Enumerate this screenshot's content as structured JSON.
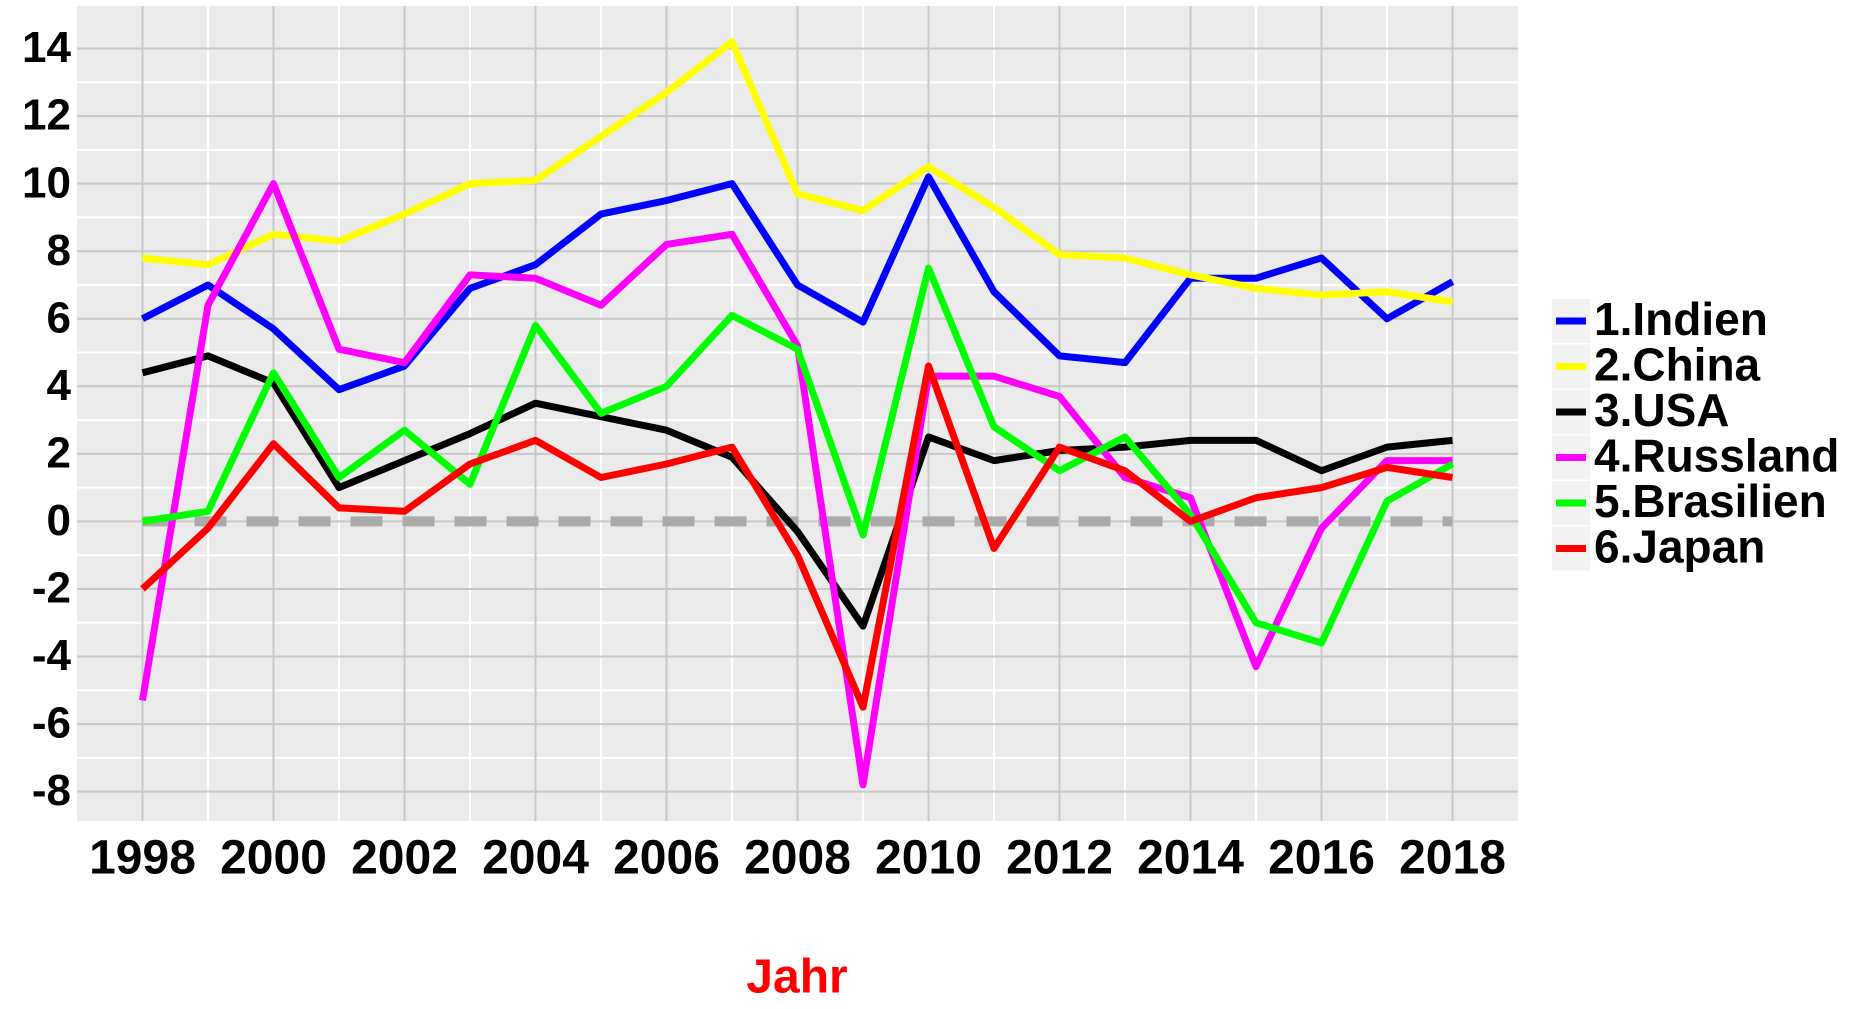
{
  "chart_data": {
    "type": "line",
    "x_label": "Jahr",
    "x": [
      1998,
      1999,
      2000,
      2001,
      2002,
      2003,
      2004,
      2005,
      2006,
      2007,
      2008,
      2009,
      2010,
      2011,
      2012,
      2013,
      2014,
      2015,
      2016,
      2017,
      2018
    ],
    "series": [
      {
        "name": "1.Indien",
        "color": "#0000ff",
        "values": [
          6.0,
          7.0,
          5.7,
          3.9,
          4.6,
          6.9,
          7.6,
          9.1,
          9.5,
          10.0,
          7.0,
          5.9,
          10.2,
          6.8,
          4.9,
          4.7,
          7.2,
          7.2,
          7.8,
          6.0,
          7.1
        ]
      },
      {
        "name": "2.China",
        "color": "#ffff00",
        "values": [
          7.8,
          7.6,
          8.5,
          8.3,
          9.1,
          10.0,
          10.1,
          11.4,
          12.7,
          14.2,
          9.7,
          9.2,
          10.5,
          9.3,
          7.9,
          7.8,
          7.3,
          6.9,
          6.7,
          6.8,
          6.5
        ]
      },
      {
        "name": "3.USA",
        "color": "#000000",
        "values": [
          4.4,
          4.9,
          4.1,
          1.0,
          1.8,
          2.6,
          3.5,
          3.1,
          2.7,
          1.9,
          -0.3,
          -3.1,
          2.5,
          1.8,
          2.1,
          2.2,
          2.4,
          2.4,
          1.5,
          2.2,
          2.4
        ]
      },
      {
        "name": "4.Russland",
        "color": "#ff00ff",
        "values": [
          -5.3,
          6.4,
          10.0,
          5.1,
          4.7,
          7.3,
          7.2,
          6.4,
          8.2,
          8.5,
          5.2,
          -7.8,
          4.3,
          4.3,
          3.7,
          1.3,
          0.7,
          -4.3,
          -0.2,
          1.8,
          1.8
        ]
      },
      {
        "name": "5.Brasilien",
        "color": "#00ff00",
        "values": [
          0.0,
          0.3,
          4.4,
          1.3,
          2.7,
          1.1,
          5.8,
          3.2,
          4.0,
          6.1,
          5.1,
          -0.4,
          7.5,
          2.8,
          1.5,
          2.5,
          0.2,
          -3.0,
          -3.6,
          0.6,
          1.7
        ]
      },
      {
        "name": "6.Japan",
        "color": "#ff0000",
        "values": [
          -2.0,
          -0.2,
          2.3,
          0.4,
          0.3,
          1.7,
          2.4,
          1.3,
          1.7,
          2.2,
          -1.0,
          -5.5,
          4.6,
          -0.8,
          2.2,
          1.5,
          0.0,
          0.7,
          1.0,
          1.6,
          1.3
        ]
      }
    ],
    "hline": 0,
    "hline_color": "#aaaaaa",
    "xlim": [
      1997,
      2019
    ],
    "xticks": [
      1998,
      2000,
      2002,
      2004,
      2006,
      2008,
      2010,
      2012,
      2014,
      2016,
      2018
    ],
    "ylim": [
      -8.87,
      15.26
    ],
    "yticks": [
      -8,
      -6,
      -4,
      -2,
      0,
      2,
      4,
      6,
      8,
      10,
      12,
      14
    ],
    "grid": true,
    "legend": "right"
  }
}
